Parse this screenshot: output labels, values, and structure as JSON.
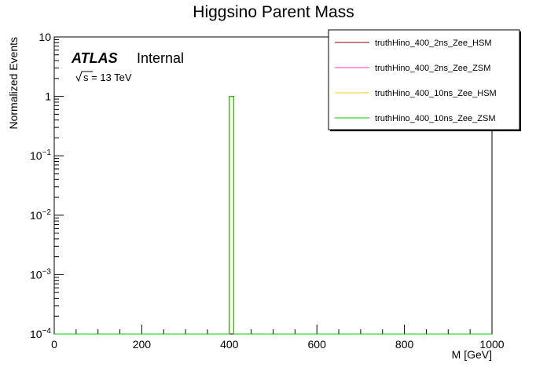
{
  "chart_data": {
    "type": "line",
    "title": "Higgsino Parent Mass",
    "xlabel": "M [GeV]",
    "ylabel": "Normalized Events",
    "xlim": [
      0,
      1000
    ],
    "ylim": [
      0.0001,
      10
    ],
    "y_scale": "log",
    "x_ticks": [
      {
        "value": 0,
        "label": "0"
      },
      {
        "value": 200,
        "label": "200"
      },
      {
        "value": 400,
        "label": "400"
      },
      {
        "value": 600,
        "label": "600"
      },
      {
        "value": 800,
        "label": "800"
      },
      {
        "value": 1000,
        "label": "1000"
      }
    ],
    "y_ticks": [
      {
        "exp": 1,
        "base": "10",
        "sup": ""
      },
      {
        "exp": 0,
        "base": "1",
        "sup": ""
      },
      {
        "exp": -1,
        "base": "10",
        "sup": "−1"
      },
      {
        "exp": -2,
        "base": "10",
        "sup": "−2"
      },
      {
        "exp": -3,
        "base": "10",
        "sup": "−3"
      },
      {
        "exp": -4,
        "base": "10",
        "sup": "−4"
      }
    ],
    "grid": false,
    "legend_position": "top-right",
    "bin": {
      "low": 400,
      "high": 410
    },
    "series": [
      {
        "name": "truthHino_400_2ns_Zee_HSM",
        "color": "#990000",
        "value": 1.0
      },
      {
        "name": "truthHino_400_2ns_Zee_ZSM",
        "color": "#ff33cc",
        "value": 1.0
      },
      {
        "name": "truthHino_400_10ns_Zee_HSM",
        "color": "#ffcc00",
        "value": 1.0
      },
      {
        "name": "truthHino_400_10ns_Zee_ZSM",
        "color": "#00cc00",
        "value": 1.0
      }
    ],
    "atlas_label": "ATLAS",
    "atlas_status": "Internal",
    "energy_label": "s = 13 TeV"
  }
}
